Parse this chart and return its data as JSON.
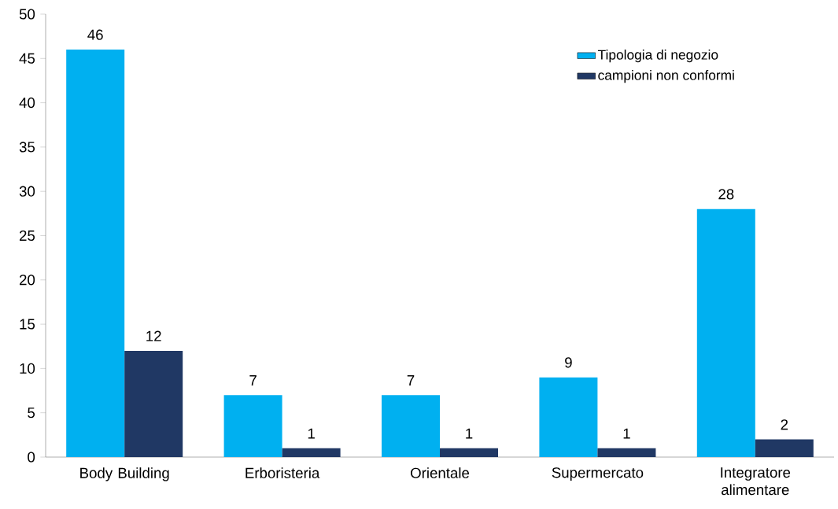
{
  "chart_data": {
    "type": "bar",
    "categories": [
      "Body Building",
      "Erboristeria",
      "Orientale",
      "Supermercato",
      "Integratore alimentare"
    ],
    "series": [
      {
        "name": "Tipologia di negozio",
        "color": "#00b0f0",
        "values": [
          46,
          7,
          7,
          9,
          28
        ]
      },
      {
        "name": "campioni non conformi",
        "color": "#203864",
        "values": [
          12,
          1,
          1,
          1,
          2
        ]
      }
    ],
    "ylim": [
      0,
      50
    ],
    "yticks": [
      0,
      5,
      10,
      15,
      20,
      25,
      30,
      35,
      40,
      45,
      50
    ],
    "data_labels": true,
    "grid": false,
    "legend": "top right"
  }
}
